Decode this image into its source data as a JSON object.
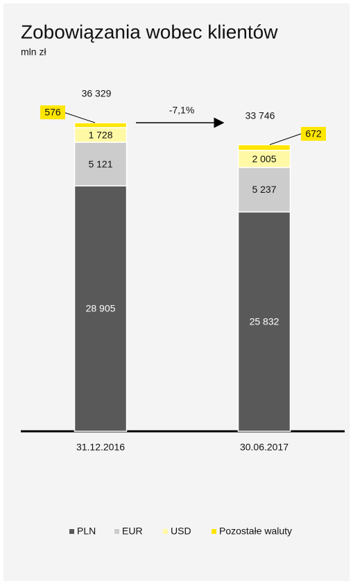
{
  "chart_data": {
    "type": "stacked_bar",
    "title": "Zobowiązania wobec klientów",
    "subtitle": "mln zł",
    "categories": [
      "31.12.2016",
      "30.06.2017"
    ],
    "series": [
      {
        "name": "PLN",
        "color": "#595959",
        "values": [
          28905,
          25832
        ],
        "value_labels": [
          "28 905",
          "25 832"
        ]
      },
      {
        "name": "EUR",
        "color": "#cccccc",
        "values": [
          5121,
          5237
        ],
        "value_labels": [
          "5 121",
          "5 237"
        ]
      },
      {
        "name": "USD",
        "color": "#fff9a6",
        "values": [
          1728,
          2005
        ],
        "value_labels": [
          "1 728",
          "2 005"
        ]
      },
      {
        "name": "Pozostałe waluty",
        "color": "#ffe600",
        "values": [
          576,
          672
        ],
        "value_labels": [
          "576",
          "672"
        ]
      }
    ],
    "totals": [
      36329,
      33746
    ],
    "total_labels": [
      "36 329",
      "33 746"
    ],
    "annotation": "-7,1%"
  }
}
